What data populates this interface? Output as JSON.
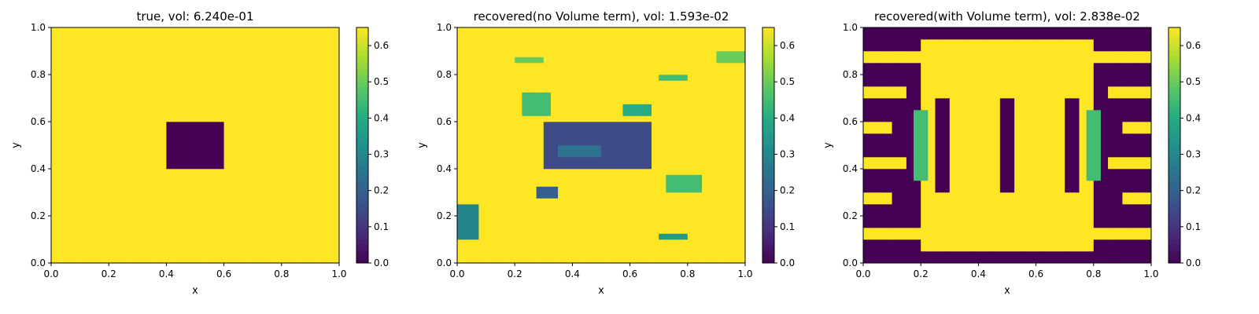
{
  "chart_data": [
    {
      "type": "heatmap",
      "title": "true, vol: 6.240e-01",
      "xlabel": "x",
      "ylabel": "y",
      "xlim": [
        0,
        1
      ],
      "ylim": [
        0,
        1
      ],
      "xticks": [
        "0.0",
        "0.2",
        "0.4",
        "0.6",
        "0.8",
        "1.0"
      ],
      "yticks": [
        "0.0",
        "0.2",
        "0.4",
        "0.6",
        "0.8",
        "1.0"
      ],
      "grid_resolution": 40,
      "background_value": 0.65,
      "regions": [
        {
          "x_range": [
            0.4,
            0.6
          ],
          "y_range": [
            0.4,
            0.6
          ],
          "value": 0.0
        }
      ],
      "colorbar": {
        "cmap": "viridis",
        "vmin": 0.0,
        "vmax": 0.65,
        "ticks": [
          "0.0",
          "0.1",
          "0.2",
          "0.3",
          "0.4",
          "0.5",
          "0.6"
        ]
      }
    },
    {
      "type": "heatmap",
      "title": "recovered(no Volume term), vol: 1.593e-02",
      "xlabel": "x",
      "ylabel": "y",
      "xlim": [
        0,
        1
      ],
      "ylim": [
        0,
        1
      ],
      "xticks": [
        "0.0",
        "0.2",
        "0.4",
        "0.6",
        "0.8",
        "1.0"
      ],
      "yticks": [
        "0.0",
        "0.2",
        "0.4",
        "0.6",
        "0.8",
        "1.0"
      ],
      "grid_resolution": 40,
      "background_value": 0.65,
      "regions": [
        {
          "x_range": [
            0.3,
            0.67
          ],
          "y_range": [
            0.4,
            0.6
          ],
          "value": 0.15
        },
        {
          "x_range": [
            0.35,
            0.5
          ],
          "y_range": [
            0.45,
            0.5
          ],
          "value": 0.25
        },
        {
          "x_range": [
            0.22,
            0.32
          ],
          "y_range": [
            0.62,
            0.72
          ],
          "value": 0.45
        },
        {
          "x_range": [
            0.58,
            0.68
          ],
          "y_range": [
            0.62,
            0.67
          ],
          "value": 0.4
        },
        {
          "x_range": [
            0.0,
            0.07
          ],
          "y_range": [
            0.1,
            0.25
          ],
          "value": 0.3
        },
        {
          "x_range": [
            0.27,
            0.35
          ],
          "y_range": [
            0.28,
            0.33
          ],
          "value": 0.2
        },
        {
          "x_range": [
            0.72,
            0.85
          ],
          "y_range": [
            0.3,
            0.38
          ],
          "value": 0.45
        },
        {
          "x_range": [
            0.9,
            1.0
          ],
          "y_range": [
            0.85,
            0.9
          ],
          "value": 0.5
        },
        {
          "x_range": [
            0.2,
            0.3
          ],
          "y_range": [
            0.85,
            0.88
          ],
          "value": 0.5
        },
        {
          "x_range": [
            0.7,
            0.8
          ],
          "y_range": [
            0.77,
            0.8
          ],
          "value": 0.45
        },
        {
          "x_range": [
            0.7,
            0.8
          ],
          "y_range": [
            0.1,
            0.13
          ],
          "value": 0.35
        }
      ],
      "colorbar": {
        "cmap": "viridis",
        "vmin": 0.0,
        "vmax": 0.65,
        "ticks": [
          "0.0",
          "0.1",
          "0.2",
          "0.3",
          "0.4",
          "0.5",
          "0.6"
        ]
      }
    },
    {
      "type": "heatmap",
      "title": "recovered(with Volume term), vol: 2.838e-02",
      "xlabel": "x",
      "ylabel": "y",
      "xlim": [
        0,
        1
      ],
      "ylim": [
        0,
        1
      ],
      "xticks": [
        "0.0",
        "0.2",
        "0.4",
        "0.6",
        "0.8",
        "1.0"
      ],
      "yticks": [
        "0.0",
        "0.2",
        "0.4",
        "0.6",
        "0.8",
        "1.0"
      ],
      "grid_resolution": 40,
      "background_value": 0.0,
      "regions": [
        {
          "x_range": [
            0.2,
            0.8
          ],
          "y_range": [
            0.05,
            0.95
          ],
          "value": 0.65
        },
        {
          "x_range": [
            0.0,
            0.2
          ],
          "y_range": [
            0.85,
            0.9
          ],
          "value": 0.65
        },
        {
          "x_range": [
            0.8,
            1.0
          ],
          "y_range": [
            0.85,
            0.9
          ],
          "value": 0.65
        },
        {
          "x_range": [
            0.0,
            0.15
          ],
          "y_range": [
            0.7,
            0.75
          ],
          "value": 0.65
        },
        {
          "x_range": [
            0.85,
            1.0
          ],
          "y_range": [
            0.7,
            0.75
          ],
          "value": 0.65
        },
        {
          "x_range": [
            0.0,
            0.1
          ],
          "y_range": [
            0.55,
            0.6
          ],
          "value": 0.65
        },
        {
          "x_range": [
            0.9,
            1.0
          ],
          "y_range": [
            0.55,
            0.6
          ],
          "value": 0.65
        },
        {
          "x_range": [
            0.0,
            0.15
          ],
          "y_range": [
            0.4,
            0.45
          ],
          "value": 0.65
        },
        {
          "x_range": [
            0.85,
            1.0
          ],
          "y_range": [
            0.4,
            0.45
          ],
          "value": 0.65
        },
        {
          "x_range": [
            0.0,
            0.1
          ],
          "y_range": [
            0.25,
            0.3
          ],
          "value": 0.65
        },
        {
          "x_range": [
            0.9,
            1.0
          ],
          "y_range": [
            0.25,
            0.3
          ],
          "value": 0.65
        },
        {
          "x_range": [
            0.0,
            0.2
          ],
          "y_range": [
            0.1,
            0.15
          ],
          "value": 0.65
        },
        {
          "x_range": [
            0.8,
            1.0
          ],
          "y_range": [
            0.1,
            0.15
          ],
          "value": 0.65
        },
        {
          "x_range": [
            0.25,
            0.3
          ],
          "y_range": [
            0.3,
            0.7
          ],
          "value": 0.0
        },
        {
          "x_range": [
            0.47,
            0.53
          ],
          "y_range": [
            0.3,
            0.7
          ],
          "value": 0.0
        },
        {
          "x_range": [
            0.7,
            0.75
          ],
          "y_range": [
            0.3,
            0.7
          ],
          "value": 0.0
        },
        {
          "x_range": [
            0.18,
            0.23
          ],
          "y_range": [
            0.35,
            0.65
          ],
          "value": 0.45
        },
        {
          "x_range": [
            0.77,
            0.82
          ],
          "y_range": [
            0.35,
            0.65
          ],
          "value": 0.45
        }
      ],
      "colorbar": {
        "cmap": "viridis",
        "vmin": 0.0,
        "vmax": 0.65,
        "ticks": [
          "0.0",
          "0.1",
          "0.2",
          "0.3",
          "0.4",
          "0.5",
          "0.6"
        ]
      }
    }
  ]
}
